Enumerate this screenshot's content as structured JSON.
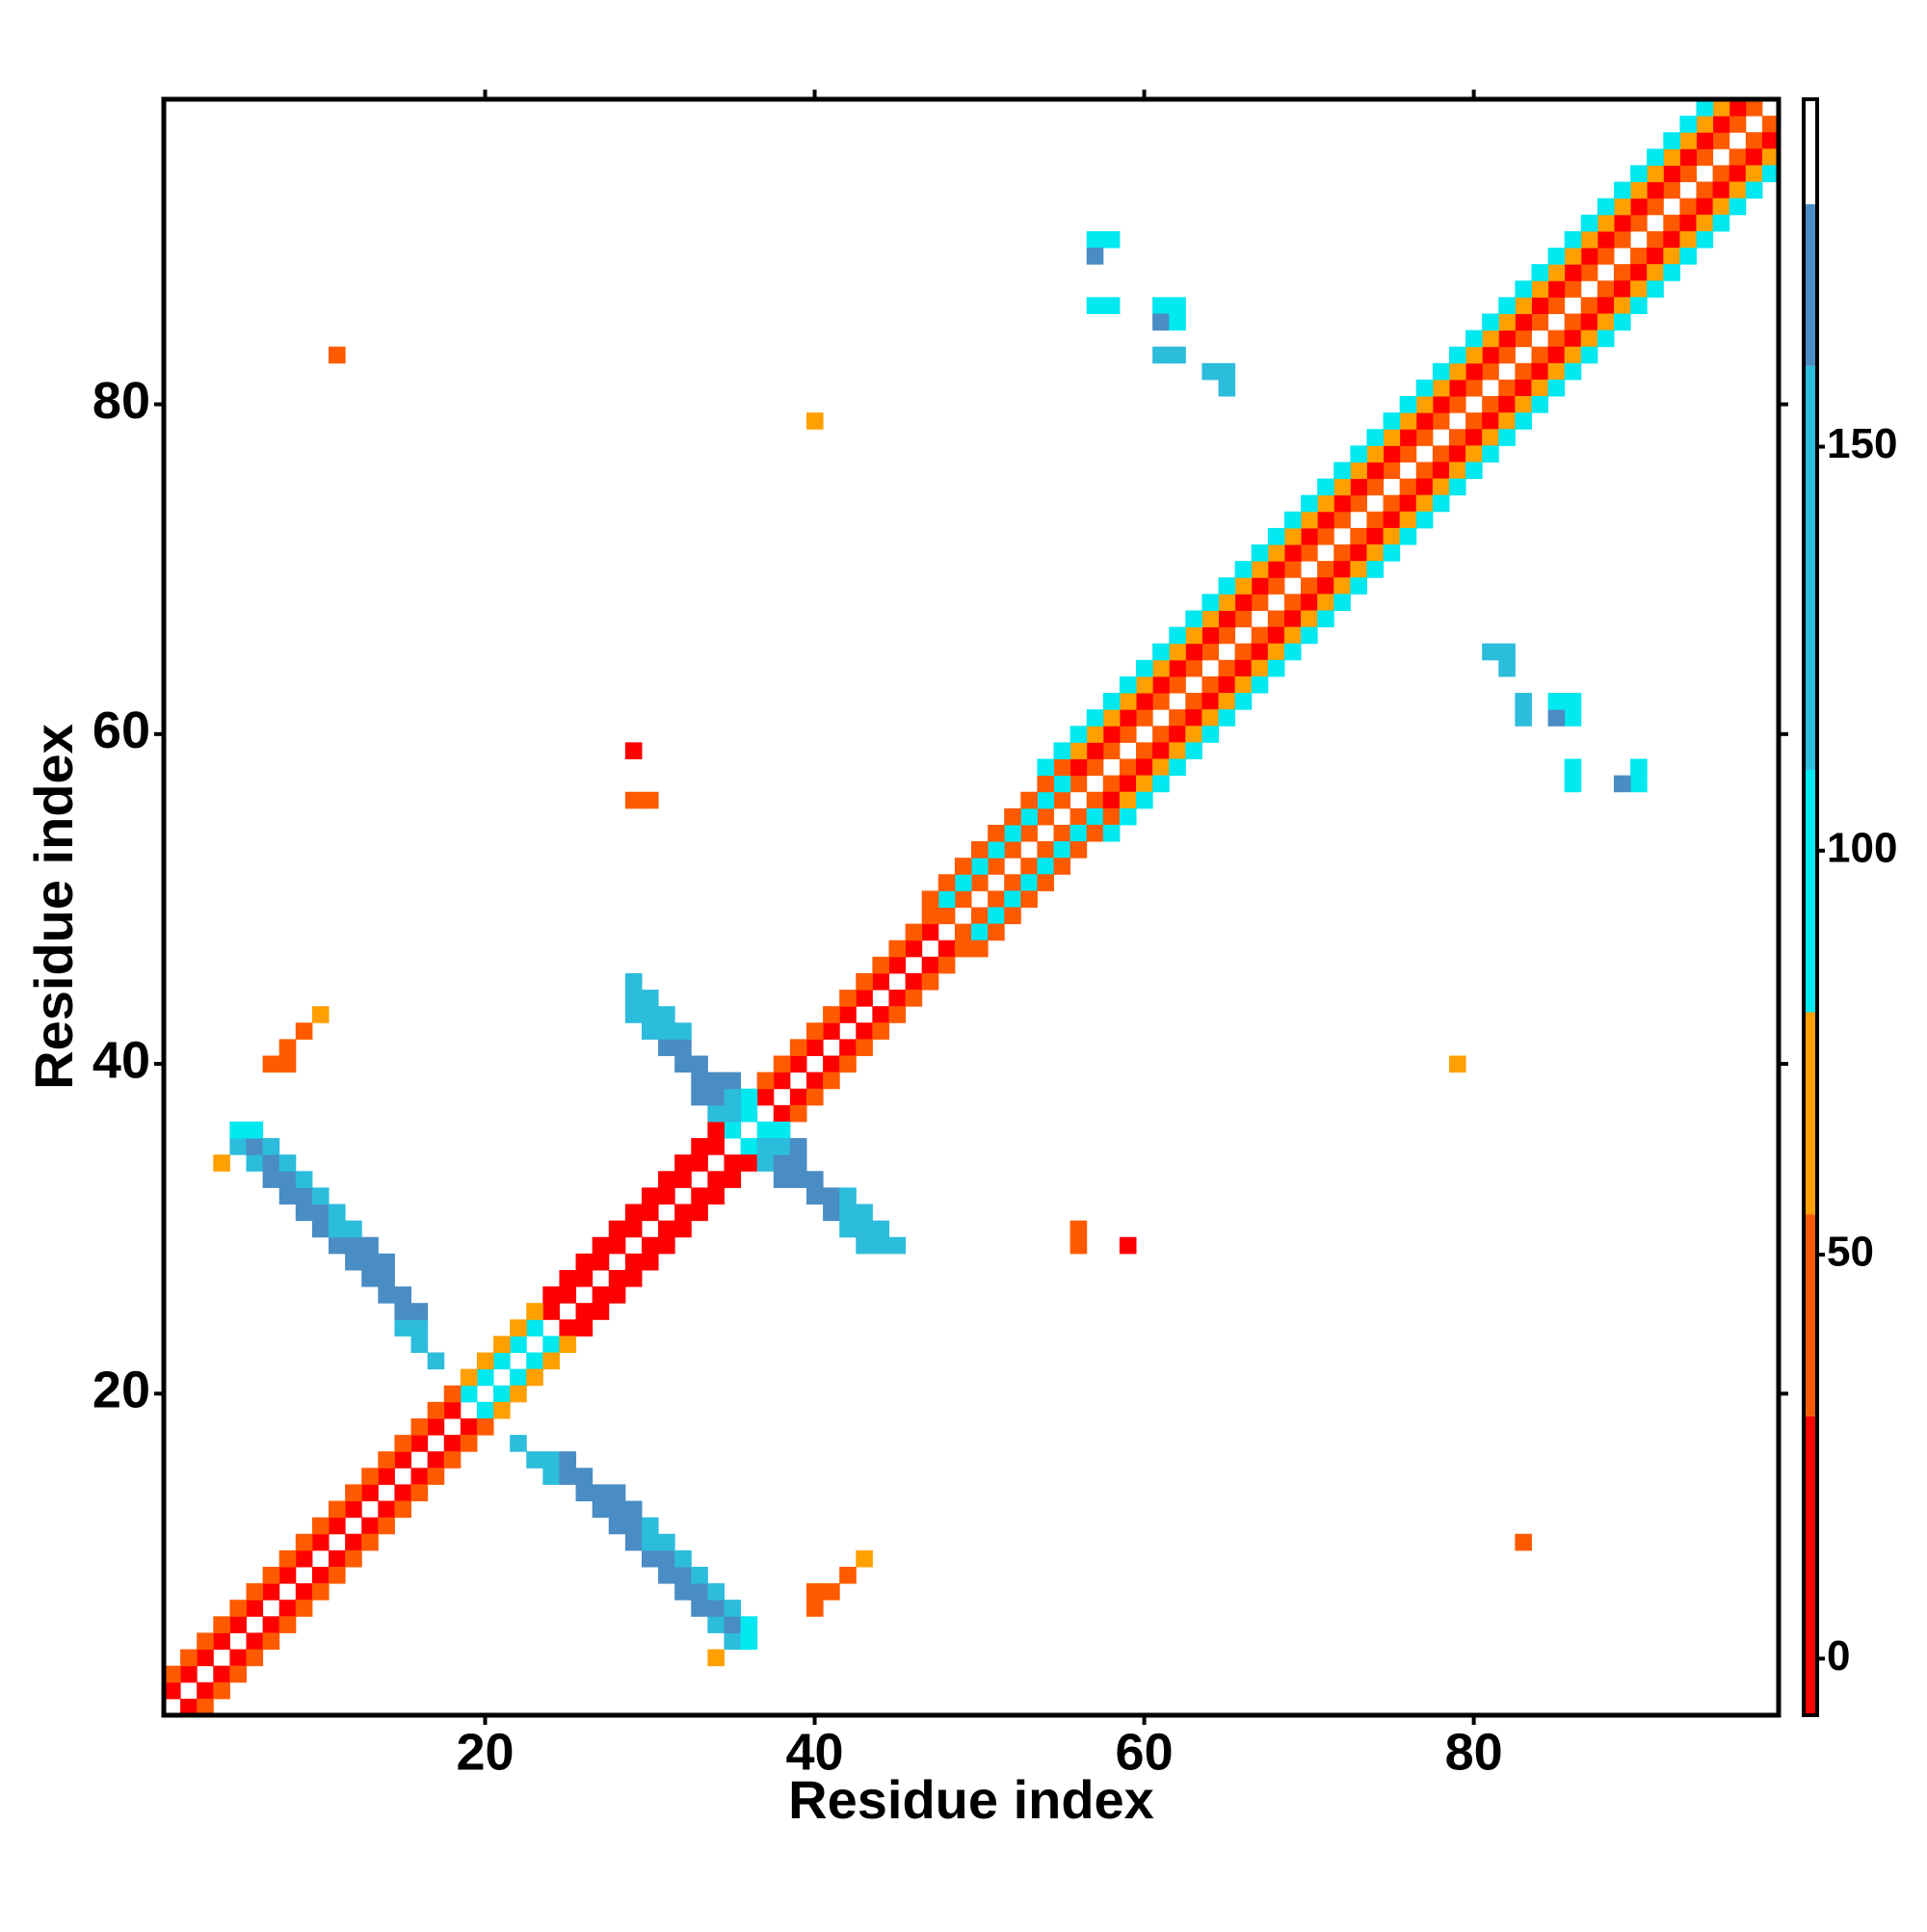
{
  "chart_data": {
    "type": "heatmap",
    "xlabel": "Residue index",
    "ylabel": "Residue index",
    "xlim": [
      0.5,
      98.5
    ],
    "ylim": [
      0.5,
      98.5
    ],
    "xticks": [
      20,
      40,
      60,
      80
    ],
    "yticks": [
      20,
      40,
      60,
      80
    ],
    "symmetric": true,
    "colorbar": {
      "lim": [
        -7,
        193
      ],
      "ticks": [
        0,
        50,
        100,
        150
      ],
      "bounds": [
        -7,
        30,
        55,
        80,
        110,
        160,
        180,
        193
      ],
      "colors": [
        "#ff0000",
        "#ff5a00",
        "#ffa000",
        "#00e8f0",
        "#2cbcdc",
        "#4a8cc4",
        "#ffffff"
      ]
    },
    "cells": [
      [
        1,
        2,
        10
      ],
      [
        2,
        3,
        10
      ],
      [
        3,
        4,
        10
      ],
      [
        4,
        5,
        10
      ],
      [
        5,
        6,
        10
      ],
      [
        6,
        7,
        10
      ],
      [
        7,
        8,
        10
      ],
      [
        8,
        9,
        10
      ],
      [
        9,
        10,
        10
      ],
      [
        10,
        11,
        10
      ],
      [
        11,
        12,
        10
      ],
      [
        12,
        13,
        10
      ],
      [
        13,
        14,
        10
      ],
      [
        14,
        15,
        10
      ],
      [
        15,
        16,
        10
      ],
      [
        16,
        17,
        10
      ],
      [
        17,
        18,
        10
      ],
      [
        18,
        19,
        10
      ],
      [
        19,
        20,
        90
      ],
      [
        20,
        21,
        90
      ],
      [
        21,
        22,
        90
      ],
      [
        22,
        23,
        90
      ],
      [
        23,
        24,
        90
      ],
      [
        24,
        25,
        10
      ],
      [
        25,
        26,
        10
      ],
      [
        26,
        27,
        10
      ],
      [
        27,
        28,
        10
      ],
      [
        28,
        29,
        10
      ],
      [
        29,
        30,
        10
      ],
      [
        30,
        31,
        10
      ],
      [
        31,
        32,
        10
      ],
      [
        32,
        33,
        10
      ],
      [
        33,
        34,
        10
      ],
      [
        34,
        35,
        10
      ],
      [
        35,
        36,
        90
      ],
      [
        36,
        37,
        90
      ],
      [
        37,
        38,
        10
      ],
      [
        38,
        39,
        10
      ],
      [
        39,
        40,
        10
      ],
      [
        40,
        41,
        10
      ],
      [
        41,
        42,
        10
      ],
      [
        42,
        43,
        10
      ],
      [
        43,
        44,
        10
      ],
      [
        44,
        45,
        10
      ],
      [
        45,
        46,
        10
      ],
      [
        46,
        47,
        10
      ],
      [
        47,
        48,
        10
      ],
      [
        48,
        49,
        40
      ],
      [
        49,
        50,
        40
      ],
      [
        50,
        51,
        40
      ],
      [
        51,
        52,
        40
      ],
      [
        52,
        53,
        40
      ],
      [
        53,
        54,
        40
      ],
      [
        54,
        55,
        40
      ],
      [
        55,
        56,
        40
      ],
      [
        56,
        57,
        40
      ],
      [
        57,
        58,
        40
      ],
      [
        58,
        59,
        40
      ],
      [
        59,
        60,
        40
      ],
      [
        60,
        61,
        40
      ],
      [
        61,
        62,
        40
      ],
      [
        62,
        63,
        40
      ],
      [
        63,
        64,
        40
      ],
      [
        64,
        65,
        40
      ],
      [
        65,
        66,
        40
      ],
      [
        66,
        67,
        40
      ],
      [
        67,
        68,
        40
      ],
      [
        68,
        69,
        40
      ],
      [
        69,
        70,
        40
      ],
      [
        70,
        71,
        40
      ],
      [
        71,
        72,
        40
      ],
      [
        72,
        73,
        40
      ],
      [
        73,
        74,
        40
      ],
      [
        74,
        75,
        40
      ],
      [
        75,
        76,
        40
      ],
      [
        76,
        77,
        40
      ],
      [
        77,
        78,
        40
      ],
      [
        78,
        79,
        40
      ],
      [
        79,
        80,
        40
      ],
      [
        80,
        81,
        40
      ],
      [
        81,
        82,
        40
      ],
      [
        82,
        83,
        40
      ],
      [
        83,
        84,
        40
      ],
      [
        84,
        85,
        40
      ],
      [
        85,
        86,
        40
      ],
      [
        86,
        87,
        40
      ],
      [
        87,
        88,
        40
      ],
      [
        88,
        89,
        40
      ],
      [
        89,
        90,
        40
      ],
      [
        90,
        91,
        40
      ],
      [
        91,
        92,
        40
      ],
      [
        92,
        93,
        40
      ],
      [
        93,
        94,
        40
      ],
      [
        94,
        95,
        40
      ],
      [
        95,
        96,
        40
      ],
      [
        96,
        97,
        40
      ],
      [
        97,
        98,
        40
      ],
      [
        1,
        3,
        40
      ],
      [
        2,
        4,
        40
      ],
      [
        3,
        5,
        40
      ],
      [
        4,
        6,
        40
      ],
      [
        5,
        7,
        40
      ],
      [
        6,
        8,
        40
      ],
      [
        7,
        9,
        40
      ],
      [
        8,
        10,
        40
      ],
      [
        9,
        11,
        40
      ],
      [
        10,
        12,
        40
      ],
      [
        11,
        13,
        40
      ],
      [
        12,
        14,
        40
      ],
      [
        13,
        15,
        40
      ],
      [
        14,
        16,
        40
      ],
      [
        15,
        17,
        40
      ],
      [
        16,
        18,
        40
      ],
      [
        17,
        19,
        40
      ],
      [
        18,
        20,
        40
      ],
      [
        19,
        21,
        65
      ],
      [
        20,
        22,
        65
      ],
      [
        21,
        23,
        65
      ],
      [
        22,
        24,
        65
      ],
      [
        23,
        25,
        65
      ],
      [
        24,
        26,
        10
      ],
      [
        25,
        27,
        10
      ],
      [
        26,
        28,
        10
      ],
      [
        27,
        29,
        10
      ],
      [
        28,
        30,
        10
      ],
      [
        29,
        31,
        10
      ],
      [
        30,
        32,
        10
      ],
      [
        31,
        33,
        10
      ],
      [
        32,
        34,
        10
      ],
      [
        33,
        35,
        10
      ],
      [
        34,
        36,
        10
      ],
      [
        35,
        37,
        90
      ],
      [
        36,
        38,
        90
      ],
      [
        37,
        39,
        40
      ],
      [
        38,
        40,
        40
      ],
      [
        39,
        41,
        40
      ],
      [
        40,
        42,
        40
      ],
      [
        41,
        43,
        40
      ],
      [
        42,
        44,
        40
      ],
      [
        43,
        45,
        40
      ],
      [
        44,
        46,
        40
      ],
      [
        45,
        47,
        40
      ],
      [
        46,
        48,
        40
      ],
      [
        47,
        49,
        40
      ],
      [
        48,
        50,
        90
      ],
      [
        49,
        51,
        90
      ],
      [
        50,
        52,
        90
      ],
      [
        51,
        53,
        90
      ],
      [
        52,
        54,
        90
      ],
      [
        53,
        55,
        90
      ],
      [
        54,
        56,
        90
      ],
      [
        55,
        57,
        90
      ],
      [
        56,
        58,
        10
      ],
      [
        57,
        59,
        10
      ],
      [
        58,
        60,
        10
      ],
      [
        59,
        61,
        10
      ],
      [
        60,
        62,
        10
      ],
      [
        61,
        63,
        10
      ],
      [
        62,
        64,
        10
      ],
      [
        63,
        65,
        10
      ],
      [
        64,
        66,
        10
      ],
      [
        65,
        67,
        10
      ],
      [
        66,
        68,
        10
      ],
      [
        67,
        69,
        10
      ],
      [
        68,
        70,
        10
      ],
      [
        69,
        71,
        10
      ],
      [
        70,
        72,
        10
      ],
      [
        71,
        73,
        10
      ],
      [
        72,
        74,
        10
      ],
      [
        73,
        75,
        10
      ],
      [
        74,
        76,
        10
      ],
      [
        75,
        77,
        10
      ],
      [
        76,
        78,
        10
      ],
      [
        77,
        79,
        10
      ],
      [
        78,
        80,
        10
      ],
      [
        79,
        81,
        10
      ],
      [
        80,
        82,
        10
      ],
      [
        81,
        83,
        10
      ],
      [
        82,
        84,
        10
      ],
      [
        83,
        85,
        10
      ],
      [
        84,
        86,
        10
      ],
      [
        85,
        87,
        10
      ],
      [
        86,
        88,
        10
      ],
      [
        87,
        89,
        10
      ],
      [
        88,
        90,
        10
      ],
      [
        89,
        91,
        10
      ],
      [
        90,
        92,
        10
      ],
      [
        91,
        93,
        10
      ],
      [
        92,
        94,
        10
      ],
      [
        93,
        95,
        10
      ],
      [
        94,
        96,
        10
      ],
      [
        95,
        97,
        10
      ],
      [
        96,
        98,
        10
      ],
      [
        47,
        50,
        40
      ],
      [
        48,
        51,
        40
      ],
      [
        49,
        52,
        40
      ],
      [
        50,
        53,
        40
      ],
      [
        51,
        54,
        40
      ],
      [
        52,
        55,
        40
      ],
      [
        53,
        56,
        40
      ],
      [
        54,
        57,
        40
      ],
      [
        55,
        58,
        40
      ],
      [
        56,
        59,
        65
      ],
      [
        57,
        60,
        65
      ],
      [
        58,
        61,
        65
      ],
      [
        59,
        62,
        65
      ],
      [
        60,
        63,
        65
      ],
      [
        61,
        64,
        65
      ],
      [
        62,
        65,
        65
      ],
      [
        63,
        66,
        65
      ],
      [
        64,
        67,
        65
      ],
      [
        65,
        68,
        65
      ],
      [
        66,
        69,
        65
      ],
      [
        67,
        70,
        65
      ],
      [
        68,
        71,
        65
      ],
      [
        69,
        72,
        65
      ],
      [
        70,
        73,
        65
      ],
      [
        71,
        74,
        65
      ],
      [
        72,
        75,
        65
      ],
      [
        73,
        76,
        65
      ],
      [
        74,
        77,
        65
      ],
      [
        75,
        78,
        65
      ],
      [
        76,
        79,
        65
      ],
      [
        77,
        80,
        65
      ],
      [
        78,
        81,
        65
      ],
      [
        79,
        82,
        65
      ],
      [
        80,
        83,
        65
      ],
      [
        81,
        84,
        65
      ],
      [
        82,
        85,
        65
      ],
      [
        83,
        86,
        65
      ],
      [
        84,
        87,
        65
      ],
      [
        85,
        88,
        65
      ],
      [
        86,
        89,
        65
      ],
      [
        87,
        90,
        65
      ],
      [
        88,
        91,
        65
      ],
      [
        89,
        92,
        65
      ],
      [
        90,
        93,
        65
      ],
      [
        91,
        94,
        65
      ],
      [
        92,
        95,
        65
      ],
      [
        93,
        96,
        65
      ],
      [
        94,
        97,
        65
      ],
      [
        95,
        98,
        65
      ],
      [
        54,
        58,
        90
      ],
      [
        55,
        59,
        90
      ],
      [
        56,
        60,
        90
      ],
      [
        57,
        61,
        90
      ],
      [
        58,
        62,
        90
      ],
      [
        59,
        63,
        90
      ],
      [
        60,
        64,
        90
      ],
      [
        61,
        65,
        90
      ],
      [
        62,
        66,
        90
      ],
      [
        63,
        67,
        90
      ],
      [
        64,
        68,
        90
      ],
      [
        65,
        69,
        90
      ],
      [
        66,
        70,
        90
      ],
      [
        67,
        71,
        90
      ],
      [
        68,
        72,
        90
      ],
      [
        69,
        73,
        90
      ],
      [
        70,
        74,
        90
      ],
      [
        71,
        75,
        90
      ],
      [
        72,
        76,
        90
      ],
      [
        73,
        77,
        90
      ],
      [
        74,
        78,
        90
      ],
      [
        75,
        79,
        90
      ],
      [
        76,
        80,
        90
      ],
      [
        77,
        81,
        90
      ],
      [
        78,
        82,
        90
      ],
      [
        79,
        83,
        90
      ],
      [
        80,
        84,
        90
      ],
      [
        81,
        85,
        90
      ],
      [
        82,
        86,
        90
      ],
      [
        83,
        87,
        90
      ],
      [
        84,
        88,
        90
      ],
      [
        85,
        89,
        90
      ],
      [
        86,
        90,
        90
      ],
      [
        87,
        91,
        90
      ],
      [
        88,
        92,
        90
      ],
      [
        89,
        93,
        90
      ],
      [
        90,
        94,
        90
      ],
      [
        91,
        95,
        90
      ],
      [
        92,
        96,
        90
      ],
      [
        93,
        97,
        90
      ],
      [
        94,
        98,
        90
      ],
      [
        5,
        35,
        130
      ],
      [
        5,
        36,
        90
      ],
      [
        6,
        34,
        130
      ],
      [
        6,
        35,
        170
      ],
      [
        6,
        36,
        90
      ],
      [
        7,
        33,
        170
      ],
      [
        7,
        34,
        170
      ],
      [
        7,
        35,
        130
      ],
      [
        8,
        32,
        170
      ],
      [
        8,
        33,
        170
      ],
      [
        8,
        34,
        130
      ],
      [
        9,
        31,
        170
      ],
      [
        9,
        32,
        170
      ],
      [
        9,
        33,
        130
      ],
      [
        10,
        30,
        170
      ],
      [
        10,
        31,
        170
      ],
      [
        10,
        32,
        130
      ],
      [
        11,
        29,
        170
      ],
      [
        11,
        30,
        130
      ],
      [
        11,
        31,
        130
      ],
      [
        12,
        28,
        170
      ],
      [
        12,
        29,
        170
      ],
      [
        12,
        30,
        130
      ],
      [
        13,
        27,
        170
      ],
      [
        13,
        28,
        170
      ],
      [
        13,
        29,
        170
      ],
      [
        14,
        26,
        170
      ],
      [
        14,
        27,
        170
      ],
      [
        14,
        28,
        170
      ],
      [
        15,
        24,
        130
      ],
      [
        15,
        25,
        170
      ],
      [
        15,
        26,
        170
      ],
      [
        16,
        24,
        130
      ],
      [
        16,
        25,
        170
      ],
      [
        16,
        23,
        130
      ],
      [
        17,
        22,
        130
      ],
      [
        29,
        43,
        130
      ],
      [
        29,
        44,
        130
      ],
      [
        29,
        45,
        130
      ],
      [
        30,
        42,
        130
      ],
      [
        30,
        43,
        130
      ],
      [
        30,
        44,
        130
      ],
      [
        31,
        41,
        170
      ],
      [
        31,
        42,
        130
      ],
      [
        31,
        43,
        130
      ],
      [
        32,
        40,
        170
      ],
      [
        32,
        41,
        170
      ],
      [
        32,
        42,
        130
      ],
      [
        33,
        38,
        170
      ],
      [
        33,
        39,
        170
      ],
      [
        33,
        40,
        170
      ],
      [
        34,
        37,
        130
      ],
      [
        34,
        38,
        170
      ],
      [
        34,
        39,
        170
      ],
      [
        35,
        37,
        130
      ],
      [
        35,
        38,
        130
      ],
      [
        35,
        39,
        170
      ],
      [
        4,
        34,
        65
      ],
      [
        7,
        40,
        40
      ],
      [
        8,
        40,
        40
      ],
      [
        8,
        41,
        40
      ],
      [
        9,
        42,
        40
      ],
      [
        10,
        43,
        65
      ],
      [
        11,
        83,
        40
      ],
      [
        40,
        79,
        65
      ],
      [
        29,
        59,
        10
      ],
      [
        29,
        56,
        40
      ],
      [
        30,
        56,
        40
      ],
      [
        57,
        90,
        90
      ],
      [
        58,
        90,
        90
      ],
      [
        57,
        89,
        170
      ],
      [
        57,
        86,
        90
      ],
      [
        58,
        86,
        90
      ],
      [
        61,
        86,
        90
      ],
      [
        62,
        86,
        90
      ],
      [
        61,
        85,
        170
      ],
      [
        62,
        85,
        90
      ],
      [
        61,
        83,
        130
      ],
      [
        62,
        83,
        130
      ],
      [
        64,
        82,
        130
      ],
      [
        65,
        82,
        130
      ],
      [
        65,
        81,
        130
      ]
    ]
  }
}
